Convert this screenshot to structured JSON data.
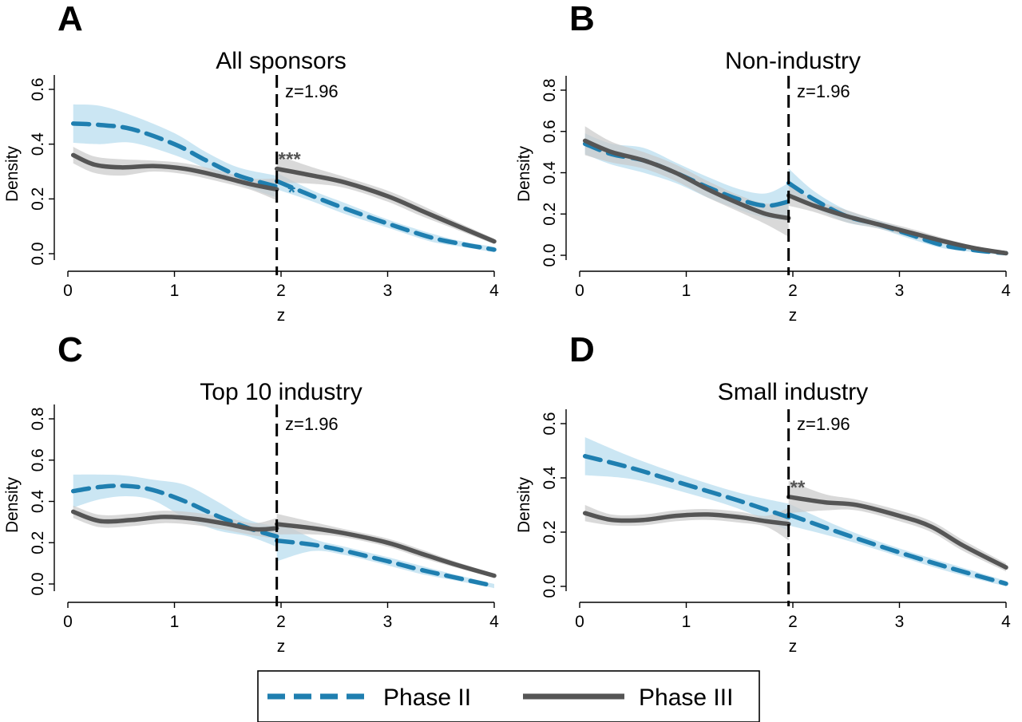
{
  "colors": {
    "phase2": "#1f7fb0",
    "phase2_band": "#b9ddef",
    "phase3": "#555555",
    "phase3_band": "#c9c9c9"
  },
  "legend": {
    "phase2_label": "Phase II",
    "phase3_label": "Phase III"
  },
  "chart_data": [
    {
      "type": "line",
      "panel": "A",
      "title": "All sponsors",
      "xlabel": "z",
      "ylabel": "Density",
      "xlim": [
        0,
        4
      ],
      "ylim": [
        0,
        0.6
      ],
      "xticks": [
        0,
        1,
        2,
        3,
        4
      ],
      "yticks": [
        0,
        0.2,
        0.4,
        0.6
      ],
      "ytick_labels": [
        "0.0",
        "0.2",
        "0.4",
        "0.6"
      ],
      "cutoff": 1.96,
      "cutoff_label": "z=1.96",
      "series": [
        {
          "name": "Phase II",
          "left": {
            "x": [
              0.05,
              0.3,
              0.6,
              1.0,
              1.3,
              1.6,
              1.96
            ],
            "y": [
              0.475,
              0.47,
              0.455,
              0.4,
              0.34,
              0.285,
              0.245
            ]
          },
          "right": {
            "x": [
              1.96,
              2.3,
              2.6,
              3.0,
              3.4,
              3.7,
              4.0
            ],
            "y": [
              0.265,
              0.21,
              0.165,
              0.11,
              0.06,
              0.035,
              0.015
            ]
          },
          "band_left": [
            0.07,
            0.07,
            0.05,
            0.04,
            0.03,
            0.03,
            0.04
          ],
          "band_right": [
            0.03,
            0.02,
            0.02,
            0.015,
            0.015,
            0.01,
            0.01
          ],
          "significance": "*"
        },
        {
          "name": "Phase III",
          "left": {
            "x": [
              0.05,
              0.25,
              0.5,
              0.8,
              1.1,
              1.4,
              1.7,
              1.96
            ],
            "y": [
              0.36,
              0.325,
              0.315,
              0.32,
              0.31,
              0.285,
              0.255,
              0.235
            ]
          },
          "right": {
            "x": [
              1.96,
              2.3,
              2.6,
              3.0,
              3.3,
              3.6,
              4.0
            ],
            "y": [
              0.31,
              0.285,
              0.26,
              0.21,
              0.16,
              0.11,
              0.045
            ]
          },
          "band_left": [
            0.03,
            0.03,
            0.03,
            0.02,
            0.02,
            0.02,
            0.02,
            0.04
          ],
          "band_right": [
            0.05,
            0.03,
            0.02,
            0.02,
            0.02,
            0.015,
            0.01
          ],
          "significance": "***"
        }
      ]
    },
    {
      "type": "line",
      "panel": "B",
      "title": "Non-industry",
      "xlabel": "z",
      "ylabel": "Density",
      "xlim": [
        0,
        4
      ],
      "ylim": [
        0,
        0.8
      ],
      "xticks": [
        0,
        1,
        2,
        3,
        4
      ],
      "yticks": [
        0,
        0.2,
        0.4,
        0.6,
        0.8
      ],
      "ytick_labels": [
        "0.0",
        "0.2",
        "0.4",
        "0.6",
        "0.8"
      ],
      "cutoff": 1.96,
      "cutoff_label": "z=1.96",
      "series": [
        {
          "name": "Phase II",
          "left": {
            "x": [
              0.05,
              0.3,
              0.6,
              0.9,
              1.2,
              1.5,
              1.75,
              1.96
            ],
            "y": [
              0.54,
              0.49,
              0.46,
              0.4,
              0.33,
              0.27,
              0.24,
              0.26
            ]
          },
          "right": {
            "x": [
              1.96,
              2.2,
              2.5,
              2.8,
              3.1,
              3.4,
              3.7,
              4.0
            ],
            "y": [
              0.35,
              0.27,
              0.19,
              0.15,
              0.1,
              0.05,
              0.025,
              0.01
            ]
          },
          "band_left": [
            0.05,
            0.05,
            0.06,
            0.05,
            0.05,
            0.05,
            0.06,
            0.09
          ],
          "band_right": [
            0.07,
            0.04,
            0.03,
            0.02,
            0.02,
            0.015,
            0.01,
            0.01
          ],
          "significance": ""
        },
        {
          "name": "Phase III",
          "left": {
            "x": [
              0.05,
              0.3,
              0.6,
              0.9,
              1.2,
              1.5,
              1.75,
              1.96
            ],
            "y": [
              0.555,
              0.5,
              0.46,
              0.4,
              0.32,
              0.25,
              0.2,
              0.18
            ]
          },
          "right": {
            "x": [
              1.96,
              2.2,
              2.5,
              2.8,
              3.1,
              3.4,
              3.7,
              4.0
            ],
            "y": [
              0.29,
              0.24,
              0.19,
              0.15,
              0.11,
              0.07,
              0.035,
              0.01
            ]
          },
          "band_left": [
            0.07,
            0.05,
            0.04,
            0.04,
            0.04,
            0.04,
            0.05,
            0.09
          ],
          "band_right": [
            0.05,
            0.03,
            0.03,
            0.02,
            0.02,
            0.015,
            0.01,
            0.01
          ],
          "significance": ""
        }
      ]
    },
    {
      "type": "line",
      "panel": "C",
      "title": "Top 10 industry",
      "xlabel": "z",
      "ylabel": "Density",
      "xlim": [
        0,
        4
      ],
      "ylim": [
        0,
        0.8
      ],
      "xticks": [
        0,
        1,
        2,
        3,
        4
      ],
      "yticks": [
        0,
        0.2,
        0.4,
        0.6,
        0.8
      ],
      "ytick_labels": [
        "0.0",
        "0.2",
        "0.4",
        "0.6",
        "0.8"
      ],
      "cutoff": 1.96,
      "cutoff_label": "z=1.96",
      "series": [
        {
          "name": "Phase II",
          "left": {
            "x": [
              0.05,
              0.3,
              0.55,
              0.8,
              1.1,
              1.4,
              1.7,
              1.96
            ],
            "y": [
              0.45,
              0.47,
              0.475,
              0.455,
              0.4,
              0.33,
              0.27,
              0.23
            ]
          },
          "right": {
            "x": [
              1.96,
              2.3,
              2.6,
              3.0,
              3.3,
              3.6,
              4.0
            ],
            "y": [
              0.21,
              0.19,
              0.16,
              0.11,
              0.07,
              0.035,
              -0.01
            ]
          },
          "band_left": [
            0.08,
            0.06,
            0.05,
            0.05,
            0.08,
            0.07,
            0.04,
            0.05
          ],
          "band_right": [
            0.1,
            0.03,
            0.02,
            0.02,
            0.02,
            0.015,
            0.01
          ],
          "significance": ""
        },
        {
          "name": "Phase III",
          "left": {
            "x": [
              0.05,
              0.3,
              0.6,
              0.9,
              1.2,
              1.5,
              1.75,
              1.96
            ],
            "y": [
              0.35,
              0.305,
              0.31,
              0.325,
              0.315,
              0.29,
              0.265,
              0.27
            ]
          },
          "right": {
            "x": [
              1.96,
              2.3,
              2.6,
              3.0,
              3.3,
              3.6,
              4.0
            ],
            "y": [
              0.29,
              0.27,
              0.245,
              0.2,
              0.15,
              0.1,
              0.04
            ]
          },
          "band_left": [
            0.03,
            0.03,
            0.03,
            0.03,
            0.03,
            0.03,
            0.03,
            0.05
          ],
          "band_right": [
            0.05,
            0.03,
            0.02,
            0.02,
            0.02,
            0.015,
            0.01
          ],
          "significance": ""
        }
      ]
    },
    {
      "type": "line",
      "panel": "D",
      "title": "Small industry",
      "xlabel": "z",
      "ylabel": "Density",
      "xlim": [
        0,
        4
      ],
      "ylim": [
        0,
        0.6
      ],
      "xticks": [
        0,
        1,
        2,
        3,
        4
      ],
      "yticks": [
        0,
        0.2,
        0.4,
        0.6
      ],
      "ytick_labels": [
        "0.0",
        "0.2",
        "0.4",
        "0.6"
      ],
      "cutoff": 1.96,
      "cutoff_label": "z=1.96",
      "series": [
        {
          "name": "Phase II",
          "left": {
            "x": [
              0.05,
              0.5,
              1.0,
              1.5,
              1.96
            ],
            "y": [
              0.48,
              0.435,
              0.375,
              0.315,
              0.255
            ]
          },
          "right": {
            "x": [
              1.96,
              2.5,
              3.0,
              3.5,
              4.0
            ],
            "y": [
              0.265,
              0.19,
              0.125,
              0.065,
              0.01
            ]
          },
          "band_left": [
            0.07,
            0.04,
            0.03,
            0.03,
            0.05
          ],
          "band_right": [
            0.04,
            0.02,
            0.015,
            0.015,
            0.01
          ],
          "significance": ""
        },
        {
          "name": "Phase III",
          "left": {
            "x": [
              0.05,
              0.3,
              0.6,
              0.9,
              1.2,
              1.5,
              1.75,
              1.96
            ],
            "y": [
              0.27,
              0.245,
              0.245,
              0.26,
              0.265,
              0.255,
              0.24,
              0.23
            ]
          },
          "right": {
            "x": [
              1.96,
              2.3,
              2.6,
              3.0,
              3.3,
              3.6,
              4.0
            ],
            "y": [
              0.33,
              0.31,
              0.3,
              0.26,
              0.22,
              0.15,
              0.07
            ]
          },
          "band_left": [
            0.03,
            0.02,
            0.02,
            0.02,
            0.02,
            0.02,
            0.02,
            0.06
          ],
          "band_right": [
            0.06,
            0.03,
            0.02,
            0.02,
            0.02,
            0.02,
            0.015
          ],
          "significance": "**"
        }
      ]
    }
  ]
}
